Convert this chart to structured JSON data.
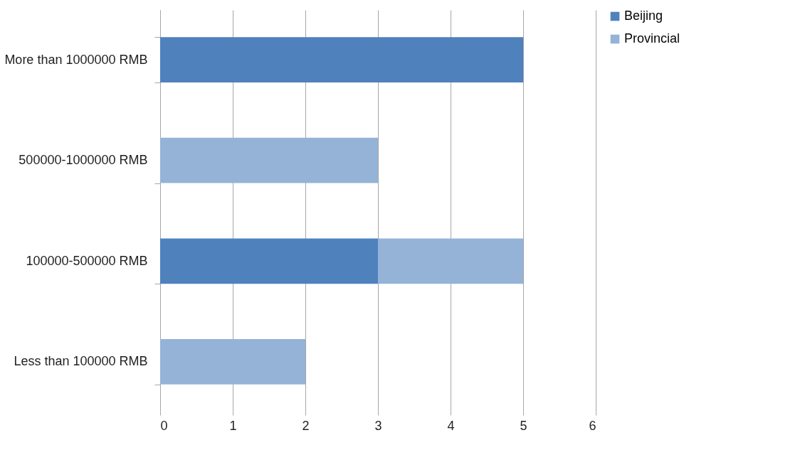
{
  "chart_data": {
    "type": "bar",
    "orientation": "horizontal",
    "stacked": true,
    "categories": [
      "More than 1000000 RMB",
      "500000-1000000 RMB",
      "100000-500000 RMB",
      "Less than 100000 RMB"
    ],
    "series": [
      {
        "name": "Beijing",
        "color": "#4f81bd",
        "values": [
          5,
          null,
          3,
          null
        ]
      },
      {
        "name": "Provincial",
        "color": "#95b3d7",
        "values": [
          null,
          3,
          2,
          2
        ]
      }
    ],
    "xlim": [
      0,
      6
    ],
    "xticks": [
      0,
      1,
      2,
      3,
      4,
      5,
      6
    ],
    "grid": "x",
    "legend": "right"
  }
}
